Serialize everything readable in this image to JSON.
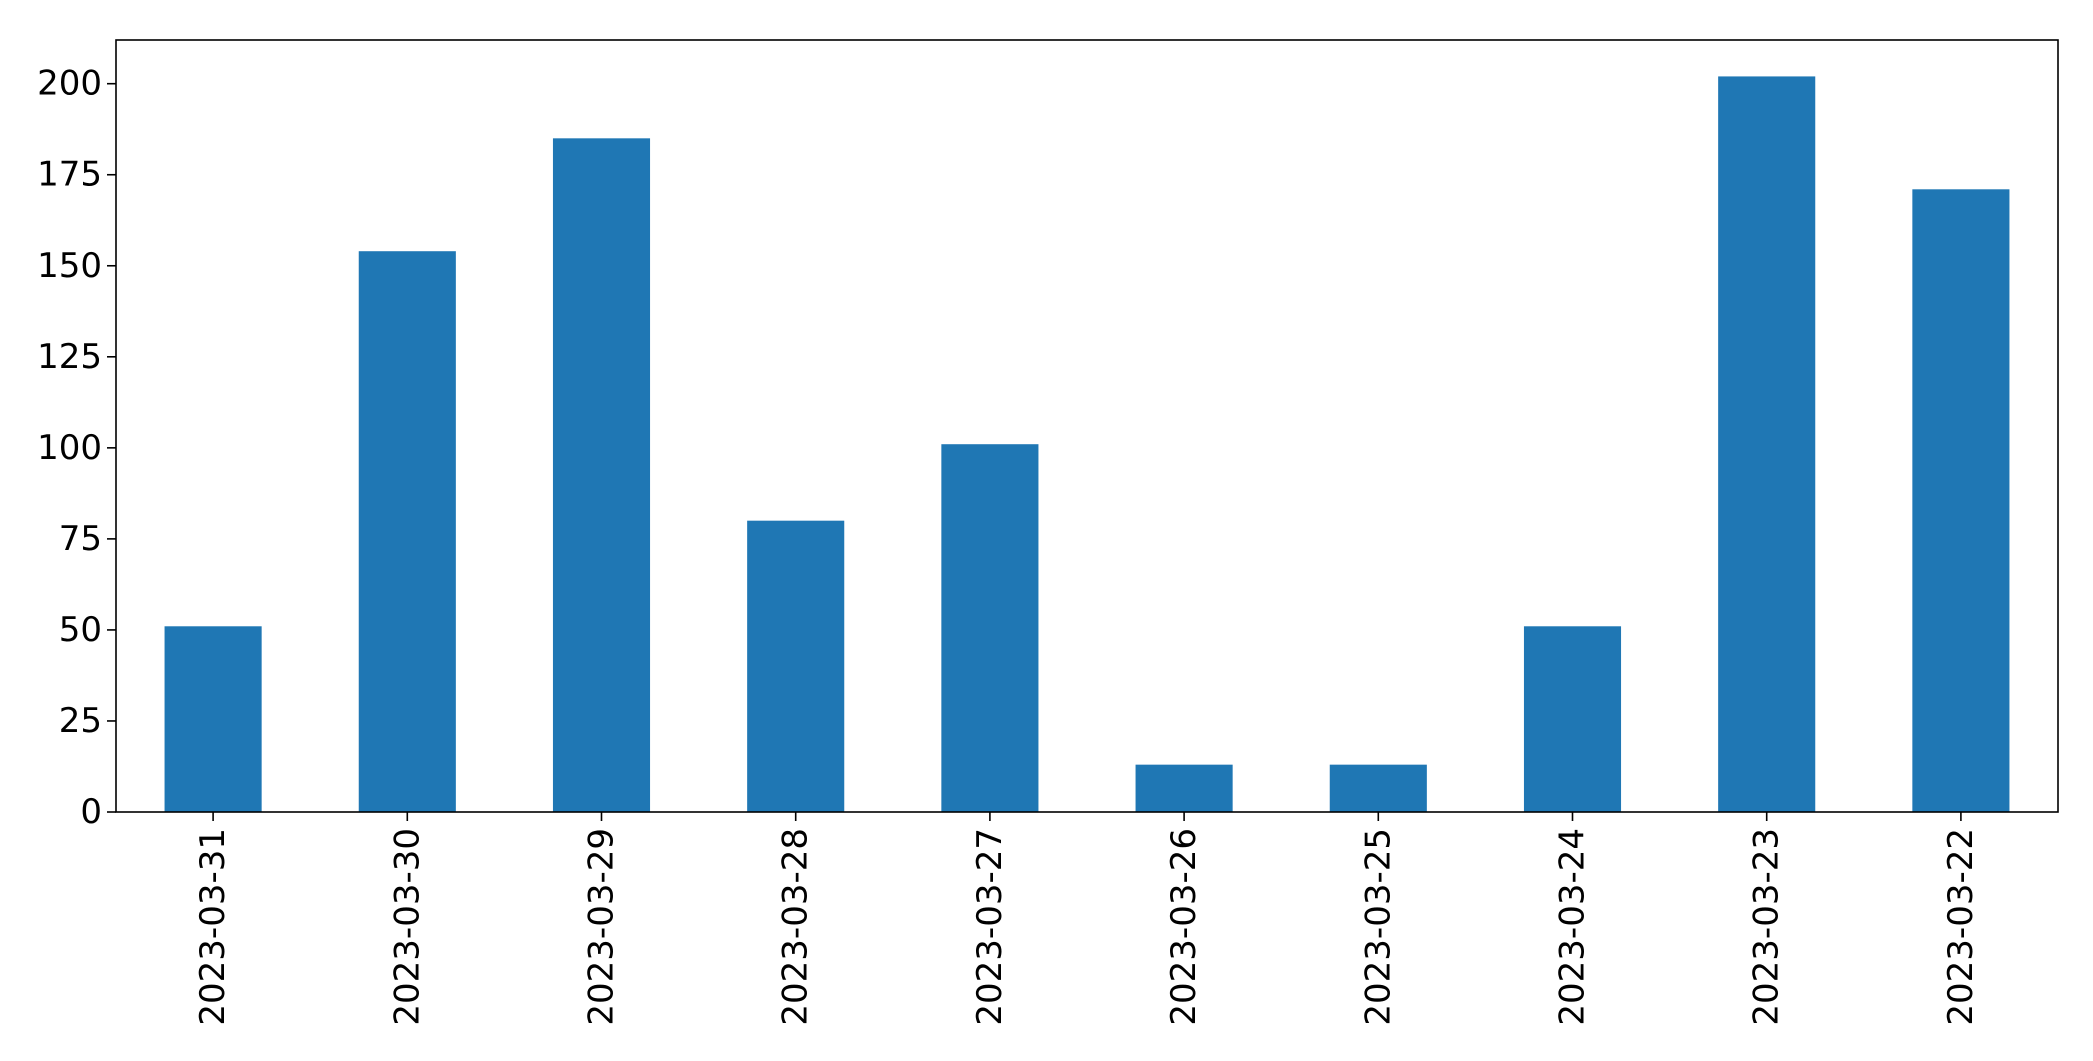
{
  "chart_data": {
    "type": "bar",
    "categories": [
      "2023-03-31",
      "2023-03-30",
      "2023-03-29",
      "2023-03-28",
      "2023-03-27",
      "2023-03-26",
      "2023-03-25",
      "2023-03-24",
      "2023-03-23",
      "2023-03-22"
    ],
    "values": [
      51,
      154,
      185,
      80,
      101,
      13,
      13,
      51,
      202,
      171
    ],
    "title": "",
    "xlabel": "",
    "ylabel": "",
    "ylim": [
      0,
      212
    ],
    "yticks": [
      0,
      25,
      50,
      75,
      100,
      125,
      150,
      175,
      200
    ],
    "grid": false,
    "legend": "none",
    "bar_color": "#1f77b4",
    "axis_color": "#000000"
  }
}
